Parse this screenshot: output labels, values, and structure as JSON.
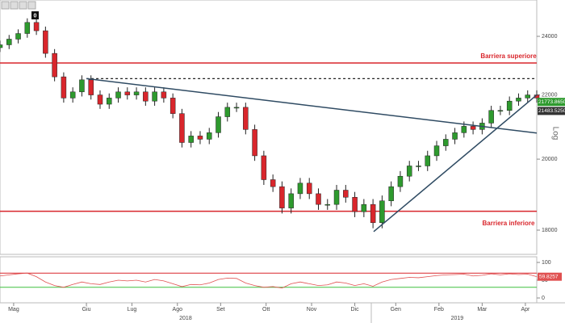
{
  "chart_data": {
    "type": "candlestick",
    "log": true,
    "scale_label": "Log",
    "badge": "0",
    "x": [
      0,
      4,
      8,
      12,
      16,
      20,
      24,
      28,
      32,
      36,
      40,
      44,
      48,
      52,
      56,
      60,
      64,
      68,
      72,
      76,
      80,
      84,
      88,
      92,
      96,
      100,
      104,
      108,
      112,
      116,
      120,
      124,
      128,
      132,
      136,
      140,
      144,
      148,
      152,
      156,
      160,
      164,
      168,
      172,
      176,
      180,
      184,
      188,
      192,
      196,
      200,
      204,
      208,
      212,
      216,
      220,
      224,
      228,
      232,
      236
    ],
    "xlim": [
      0,
      236
    ],
    "xticks": [
      {
        "value": 6,
        "label": "Mag"
      },
      {
        "value": 38,
        "label": "Giu"
      },
      {
        "value": 58,
        "label": "Lug"
      },
      {
        "value": 78,
        "label": "Ago"
      },
      {
        "value": 97,
        "label": "Set"
      },
      {
        "value": 117,
        "label": "Ott"
      },
      {
        "value": 137,
        "label": "Nov"
      },
      {
        "value": 156,
        "label": "Dic"
      },
      {
        "value": 174,
        "label": "Gen"
      },
      {
        "value": 193,
        "label": "Feb"
      },
      {
        "value": 212,
        "label": "Mar"
      },
      {
        "value": 231,
        "label": "Apr"
      }
    ],
    "year_labels": [
      {
        "value": 81.6,
        "label": "2018"
      },
      {
        "value": 201,
        "label": "2019"
      }
    ],
    "open": [
      23600,
      23700,
      23900,
      24100,
      24500,
      24200,
      23400,
      22600,
      21900,
      22100,
      22500,
      22000,
      21700,
      21900,
      22100,
      22000,
      22100,
      21800,
      22100,
      21900,
      21400,
      20500,
      20700,
      20600,
      20800,
      21300,
      21600,
      21600,
      20900,
      20100,
      19400,
      19200,
      18600,
      19000,
      19300,
      19000,
      18700,
      18700,
      19100,
      18900,
      18500,
      18700,
      18200,
      18800,
      19200,
      19500,
      19800,
      19800,
      20100,
      20400,
      20600,
      20800,
      21000,
      20900,
      21100,
      21500,
      21500,
      21800,
      21900,
      22000
    ],
    "high": [
      23850,
      24050,
      24250,
      24650,
      24650,
      24350,
      23550,
      22750,
      22250,
      22650,
      22650,
      22150,
      22050,
      22250,
      22250,
      22250,
      22250,
      22250,
      22250,
      22050,
      21550,
      20850,
      20850,
      20950,
      21450,
      21750,
      21750,
      21750,
      21050,
      20250,
      19550,
      19350,
      19150,
      19450,
      19450,
      19150,
      18850,
      19250,
      19250,
      19050,
      18850,
      18850,
      18950,
      19350,
      19650,
      19950,
      19950,
      20250,
      20550,
      20750,
      20950,
      21150,
      21150,
      21250,
      21650,
      21650,
      21950,
      22050,
      22150,
      22150
    ],
    "low": [
      23450,
      23550,
      23750,
      23950,
      24050,
      23250,
      22450,
      21750,
      21750,
      21950,
      21850,
      21550,
      21550,
      21750,
      21850,
      21850,
      21650,
      21650,
      21750,
      21250,
      20350,
      20350,
      20450,
      20450,
      20650,
      21150,
      21450,
      20750,
      19950,
      19250,
      19050,
      18450,
      18450,
      18850,
      18850,
      18550,
      18550,
      18550,
      18750,
      18350,
      18350,
      18050,
      18050,
      18650,
      19050,
      19350,
      19650,
      19650,
      19950,
      20250,
      20450,
      20650,
      20750,
      20750,
      20950,
      21350,
      21350,
      21650,
      21750,
      21750
    ],
    "close": [
      23700,
      23900,
      24100,
      24500,
      24200,
      23400,
      22600,
      21900,
      22100,
      22500,
      22000,
      21700,
      21900,
      22100,
      22000,
      22100,
      21800,
      22100,
      21900,
      21400,
      20500,
      20700,
      20600,
      20800,
      21300,
      21600,
      21600,
      20900,
      20100,
      19400,
      19200,
      18600,
      19000,
      19300,
      19000,
      18700,
      18700,
      19100,
      18900,
      18500,
      18700,
      18200,
      18800,
      19200,
      19500,
      19800,
      19800,
      20100,
      20400,
      20600,
      20800,
      21000,
      20900,
      21100,
      21500,
      21500,
      21800,
      21900,
      22000,
      21900
    ],
    "up_color": "#2e9a2e",
    "down_color": "#d9262c",
    "ylim": [
      17364,
      25330
    ],
    "yticks": [
      18000,
      20000,
      22000,
      24000
    ],
    "hlines": [
      {
        "value": 23070,
        "label": "Barriera superiore",
        "color": "#d9262c"
      },
      {
        "value": 18510,
        "label": "Barriera inferiore",
        "color": "#d9262c"
      }
    ],
    "trendlines": [
      {
        "x": [
          38,
          236
        ],
        "y": [
          22540,
          20790
        ],
        "color": "#2f4b63"
      },
      {
        "x": [
          164.3,
          236
        ],
        "y": [
          17960,
          22000
        ],
        "color": "#2f4b63"
      }
    ],
    "dashed_lines": [
      {
        "x": [
          38,
          236
        ],
        "y": [
          22540,
          22540
        ],
        "color": "#222222"
      }
    ],
    "price_labels": [
      {
        "value": 21773.865,
        "label": "21773.8650",
        "color": "#2e9a2e"
      },
      {
        "value": 21483.525,
        "label": "21483.5250",
        "color": "#333333"
      }
    ],
    "rsi": {
      "values": [
        62,
        65,
        68,
        70,
        60,
        45,
        35,
        30,
        38,
        45,
        40,
        38,
        45,
        50,
        48,
        50,
        45,
        52,
        48,
        40,
        32,
        38,
        37,
        42,
        52,
        56,
        55,
        42,
        35,
        30,
        32,
        28,
        40,
        45,
        40,
        35,
        37,
        45,
        42,
        35,
        40,
        33,
        45,
        52,
        55,
        58,
        57,
        60,
        63,
        65,
        66,
        67,
        62,
        64,
        68,
        65,
        68,
        66,
        67,
        60
      ],
      "ylim": [
        -13.6,
        115.9
      ],
      "yticks": [
        0,
        50,
        100
      ],
      "color": "#e05050",
      "levels": [
        {
          "value": 70,
          "color": "#d9262c"
        },
        {
          "value": 30,
          "color": "#3fbf3f"
        }
      ],
      "last": {
        "value": 59.8257,
        "label": "59.8257",
        "color": "#e05050"
      }
    }
  }
}
